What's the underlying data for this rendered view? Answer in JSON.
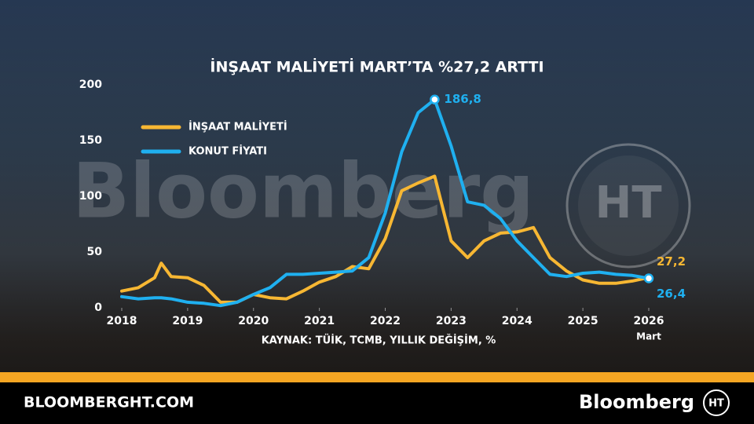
{
  "chart_data": {
    "type": "line",
    "title": "İNŞAAT MALİYETİ MART’TA %27,2 ARTTI",
    "source": "KAYNAK: TÜİK, TCMB, YILLIK DEĞİŞİM, %",
    "x_note": "Mart",
    "x": [
      2018,
      2018.25,
      2018.5,
      2018.6,
      2018.75,
      2019,
      2019.25,
      2019.5,
      2019.75,
      2020,
      2020.25,
      2020.5,
      2020.75,
      2021,
      2021.25,
      2021.5,
      2021.75,
      2022,
      2022.25,
      2022.5,
      2022.75,
      2023,
      2023.25,
      2023.5,
      2023.75,
      2024,
      2024.25,
      2024.5,
      2024.75,
      2025,
      2025.25,
      2025.5,
      2025.75,
      2026
    ],
    "xlim": [
      2018,
      2026
    ],
    "xticks": [
      2018,
      2019,
      2020,
      2021,
      2022,
      2023,
      2024,
      2025,
      2026
    ],
    "ylim": [
      0,
      200
    ],
    "yticks": [
      0,
      50,
      100,
      150,
      200
    ],
    "grid": false,
    "legend": "upper-left",
    "series": [
      {
        "name": "İNŞAAT MALİYETİ",
        "color": "#f7b733",
        "values": [
          15,
          18,
          27,
          40,
          28,
          27,
          20,
          5,
          5,
          12,
          9,
          8,
          15,
          23,
          28,
          37,
          35,
          62,
          105,
          112,
          118,
          60,
          45,
          60,
          67,
          68,
          72,
          45,
          33,
          25,
          22,
          22,
          24,
          27.2
        ],
        "value_labels": [
          null,
          null,
          null,
          null,
          null,
          null,
          null,
          null,
          null,
          null,
          null,
          null,
          null,
          null,
          null,
          null,
          null,
          null,
          null,
          null,
          null,
          null,
          null,
          null,
          null,
          null,
          null,
          null,
          null,
          null,
          null,
          null,
          null,
          "27,2"
        ]
      },
      {
        "name": "KONUT FİYATI",
        "color": "#1fb0f0",
        "values": [
          10,
          8,
          9,
          9,
          8,
          5,
          4,
          2,
          5,
          12,
          18,
          30,
          30,
          31,
          32,
          33,
          45,
          85,
          140,
          175,
          186.8,
          145,
          95,
          92,
          80,
          60,
          45,
          30,
          28,
          31,
          32,
          30,
          29,
          26.4
        ],
        "value_labels": [
          null,
          null,
          null,
          null,
          null,
          null,
          null,
          null,
          null,
          null,
          null,
          null,
          null,
          null,
          null,
          null,
          null,
          null,
          null,
          null,
          "186,8",
          null,
          null,
          null,
          null,
          null,
          null,
          null,
          null,
          null,
          null,
          null,
          null,
          "26,4"
        ]
      }
    ]
  },
  "watermark": "Bloomberg",
  "logo": "HT",
  "footer": {
    "site": "BLOOMBERGHT.COM",
    "brand": "Bloomberg"
  }
}
